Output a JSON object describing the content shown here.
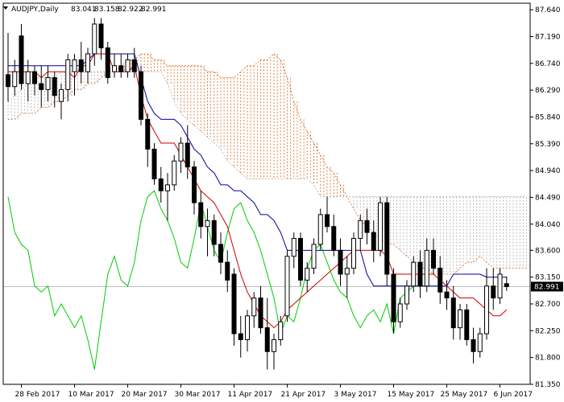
{
  "chart_data": {
    "type": "candlestick",
    "symbol": "AUDJPY",
    "timeframe": "Daily",
    "header": {
      "symbol_label": "AUDJPY,Daily",
      "open": "83.041",
      "high": "83.158",
      "low": "82.922",
      "close": "82.991"
    },
    "current_price": 82.991,
    "current_price_label": "82.991",
    "ylim": [
      81.35,
      87.75
    ],
    "y_ticks": [
      "87.640",
      "87.190",
      "86.740",
      "86.290",
      "85.840",
      "85.390",
      "84.940",
      "84.490",
      "84.040",
      "83.600",
      "83.150",
      "82.700",
      "82.250",
      "81.800",
      "81.350"
    ],
    "x_ticks": [
      {
        "i": 2,
        "label": "28 Feb 2017"
      },
      {
        "i": 10,
        "label": "10 Mar 2017"
      },
      {
        "i": 18,
        "label": "20 Mar 2017"
      },
      {
        "i": 26,
        "label": "30 Mar 2017"
      },
      {
        "i": 34,
        "label": "11 Apr 2017"
      },
      {
        "i": 42,
        "label": "21 Apr 2017"
      },
      {
        "i": 50,
        "label": "3 May 2017"
      },
      {
        "i": 58,
        "label": "15 May 2017"
      },
      {
        "i": 66,
        "label": "25 May 2017"
      },
      {
        "i": 74,
        "label": "6 Jun 2017"
      }
    ],
    "candles": [
      [
        86.55,
        87.25,
        86.1,
        86.35
      ],
      [
        86.35,
        86.8,
        86.2,
        86.6
      ],
      [
        87.2,
        87.4,
        86.3,
        86.4
      ],
      [
        86.4,
        86.8,
        86.1,
        86.6
      ],
      [
        86.6,
        86.7,
        86.2,
        86.4
      ],
      [
        86.4,
        86.7,
        86.0,
        86.3
      ],
      [
        86.3,
        86.7,
        86.1,
        86.5
      ],
      [
        86.5,
        86.6,
        86.0,
        86.2
      ],
      [
        86.1,
        86.4,
        85.8,
        86.3
      ],
      [
        86.3,
        86.9,
        86.1,
        86.8
      ],
      [
        86.6,
        86.9,
        86.2,
        86.8
      ],
      [
        86.8,
        87.1,
        86.4,
        86.6
      ],
      [
        86.6,
        87.0,
        86.4,
        86.9
      ],
      [
        86.9,
        87.5,
        86.7,
        87.4
      ],
      [
        87.4,
        87.5,
        86.8,
        87.0
      ],
      [
        87.0,
        87.1,
        86.4,
        86.5
      ],
      [
        86.6,
        86.9,
        86.5,
        86.7
      ],
      [
        86.7,
        86.9,
        86.5,
        86.6
      ],
      [
        86.6,
        86.9,
        86.5,
        86.8
      ],
      [
        86.8,
        87.0,
        86.5,
        86.6
      ],
      [
        86.6,
        86.7,
        85.7,
        85.8
      ],
      [
        85.8,
        85.9,
        85.0,
        85.3
      ],
      [
        85.3,
        85.4,
        84.7,
        84.8
      ],
      [
        84.8,
        85.0,
        84.4,
        84.6
      ],
      [
        84.6,
        84.9,
        84.1,
        84.7
      ],
      [
        84.7,
        85.2,
        84.6,
        85.1
      ],
      [
        85.1,
        85.5,
        84.9,
        85.4
      ],
      [
        85.4,
        85.7,
        84.8,
        85.0
      ],
      [
        85.0,
        85.1,
        84.2,
        84.4
      ],
      [
        84.4,
        84.6,
        83.8,
        84.0
      ],
      [
        84.0,
        84.3,
        83.5,
        84.1
      ],
      [
        84.1,
        84.2,
        83.5,
        83.7
      ],
      [
        83.7,
        83.9,
        83.2,
        83.4
      ],
      [
        83.4,
        83.6,
        82.9,
        83.1
      ],
      [
        83.2,
        83.3,
        82.0,
        82.2
      ],
      [
        82.2,
        82.5,
        81.8,
        82.1
      ],
      [
        82.1,
        82.6,
        81.9,
        82.5
      ],
      [
        82.5,
        82.9,
        82.3,
        82.8
      ],
      [
        82.8,
        83.0,
        82.2,
        82.3
      ],
      [
        82.3,
        82.8,
        81.6,
        81.9
      ],
      [
        81.9,
        82.2,
        81.6,
        82.1
      ],
      [
        82.1,
        82.5,
        82.0,
        82.4
      ],
      [
        82.5,
        83.6,
        82.4,
        83.5
      ],
      [
        83.5,
        83.9,
        83.3,
        83.8
      ],
      [
        83.8,
        83.9,
        83.0,
        83.1
      ],
      [
        83.1,
        83.4,
        82.9,
        83.3
      ],
      [
        83.3,
        83.8,
        83.2,
        83.7
      ],
      [
        83.7,
        84.3,
        83.6,
        84.2
      ],
      [
        84.2,
        84.5,
        83.9,
        84.0
      ],
      [
        84.0,
        84.2,
        83.5,
        83.6
      ],
      [
        83.6,
        83.8,
        83.0,
        83.2
      ],
      [
        83.2,
        83.5,
        82.8,
        83.3
      ],
      [
        83.3,
        83.9,
        83.2,
        83.8
      ],
      [
        83.8,
        84.2,
        83.6,
        84.1
      ],
      [
        84.1,
        84.3,
        83.7,
        83.9
      ],
      [
        83.9,
        84.1,
        83.4,
        83.6
      ],
      [
        83.6,
        84.5,
        83.5,
        84.4
      ],
      [
        84.4,
        84.5,
        83.0,
        83.2
      ],
      [
        83.2,
        83.3,
        82.2,
        82.4
      ],
      [
        82.4,
        82.8,
        82.3,
        82.7
      ],
      [
        82.7,
        83.1,
        82.6,
        83.0
      ],
      [
        83.0,
        83.5,
        82.9,
        83.4
      ],
      [
        83.4,
        83.6,
        82.8,
        83.0
      ],
      [
        83.0,
        83.8,
        82.9,
        83.6
      ],
      [
        83.6,
        83.8,
        83.2,
        83.3
      ],
      [
        83.3,
        83.5,
        82.7,
        82.9
      ],
      [
        82.9,
        83.1,
        82.6,
        82.8
      ],
      [
        82.8,
        83.0,
        82.1,
        82.3
      ],
      [
        82.3,
        82.7,
        82.1,
        82.6
      ],
      [
        82.6,
        82.7,
        82.0,
        82.1
      ],
      [
        82.1,
        82.3,
        81.7,
        81.9
      ],
      [
        81.9,
        82.3,
        81.8,
        82.2
      ],
      [
        82.2,
        83.3,
        82.1,
        83.0
      ],
      [
        83.0,
        83.3,
        82.6,
        82.8
      ],
      [
        82.8,
        83.3,
        82.7,
        83.2
      ],
      [
        83.04,
        83.16,
        82.92,
        82.99
      ]
    ],
    "tenkan": [
      86.6,
      86.6,
      86.6,
      86.6,
      86.6,
      86.5,
      86.6,
      86.6,
      86.6,
      86.6,
      86.5,
      86.7,
      86.7,
      86.9,
      86.9,
      86.9,
      86.6,
      86.6,
      86.6,
      86.7,
      86.2,
      85.8,
      85.6,
      85.4,
      85.4,
      85.4,
      85.2,
      85.0,
      84.8,
      84.6,
      84.5,
      84.4,
      84.2,
      84.0,
      83.6,
      83.2,
      82.9,
      82.7,
      82.5,
      82.4,
      82.3,
      82.4,
      82.6,
      82.7,
      82.8,
      82.9,
      83.0,
      83.1,
      83.2,
      83.3,
      83.4,
      83.5,
      83.6,
      83.6,
      83.6,
      83.6,
      83.6,
      83.5,
      83.2,
      83.2,
      83.2,
      83.2,
      83.2,
      83.2,
      83.2,
      83.1,
      83.0,
      82.9,
      82.8,
      82.8,
      82.8,
      82.7,
      82.6,
      82.5,
      82.5,
      82.6
    ],
    "kijun": [
      86.7,
      86.7,
      86.7,
      86.7,
      86.7,
      86.7,
      86.7,
      86.7,
      86.7,
      86.7,
      86.7,
      86.7,
      86.8,
      86.9,
      86.9,
      86.9,
      86.9,
      86.9,
      86.9,
      86.9,
      86.5,
      86.1,
      85.9,
      85.8,
      85.8,
      85.8,
      85.7,
      85.5,
      85.3,
      85.2,
      85.0,
      84.9,
      84.7,
      84.7,
      84.6,
      84.6,
      84.5,
      84.4,
      84.2,
      84.2,
      84.1,
      83.9,
      83.6,
      83.6,
      83.6,
      83.6,
      83.6,
      83.6,
      83.6,
      83.6,
      83.6,
      83.6,
      83.6,
      83.6,
      83.2,
      83.0,
      83.0,
      83.0,
      83.0,
      83.0,
      83.0,
      83.0,
      83.0,
      83.0,
      83.0,
      83.0,
      83.0,
      83.2,
      83.2,
      83.2,
      83.2,
      83.2,
      83.15,
      83.15,
      83.15,
      83.15
    ],
    "chikou": [
      84.5,
      83.9,
      83.7,
      83.6,
      83.0,
      82.9,
      83.0,
      82.5,
      82.7,
      82.5,
      82.3,
      82.5,
      82.1,
      81.6,
      82.4,
      83.2,
      83.5,
      83.1,
      83.0,
      83.4,
      84.1,
      84.5,
      84.6,
      84.3,
      84.1,
      83.8,
      83.4,
      83.3,
      83.8,
      84.4,
      84.0,
      83.6,
      83.4,
      83.9,
      84.3,
      84.4,
      84.1,
      83.9,
      83.6,
      83.2,
      82.8,
      82.2,
      82.5,
      82.4,
      82.8,
      83.3,
      83.6,
      83.7,
      83.4,
      83.1,
      82.9,
      82.8,
      82.5,
      82.3,
      82.5,
      82.6,
      82.4,
      82.7,
      82.2,
      82.8,
      82.9,
      83.0,
      83.0,
      83.0
    ],
    "span_a": [
      85.8,
      85.8,
      85.9,
      85.9,
      85.9,
      86.0,
      86.0,
      86.1,
      86.1,
      86.2,
      86.3,
      86.3,
      86.4,
      86.4,
      86.5,
      86.6,
      86.6,
      86.7,
      86.8,
      86.8,
      86.9,
      86.9,
      86.8,
      86.8,
      86.7,
      86.7,
      86.7,
      86.7,
      86.7,
      86.7,
      86.6,
      86.6,
      86.5,
      86.5,
      86.5,
      86.6,
      86.7,
      86.7,
      86.8,
      86.8,
      86.9,
      86.8,
      86.5,
      86.1,
      85.8,
      85.6,
      85.4,
      85.2,
      85.0,
      84.9,
      84.7,
      84.5,
      84.3,
      84.1,
      84.0,
      83.9,
      83.8,
      83.7,
      83.7,
      83.6,
      83.5,
      83.4,
      83.3,
      83.3,
      83.2,
      83.2,
      83.2,
      83.2,
      83.3,
      83.4,
      83.4,
      83.5,
      83.4,
      83.3,
      83.3,
      83.3,
      83.3,
      83.3,
      83.3,
      83.3,
      83.3,
      83.3,
      83.3,
      83.3,
      83.3,
      83.3
    ],
    "span_b": [
      86.1,
      86.2,
      86.3,
      86.4,
      86.5,
      86.5,
      86.5,
      86.5,
      86.6,
      86.6,
      86.6,
      86.6,
      86.6,
      86.6,
      86.6,
      86.6,
      86.6,
      86.6,
      86.6,
      86.6,
      86.6,
      86.6,
      86.6,
      86.6,
      86.4,
      86.1,
      85.9,
      85.8,
      85.7,
      85.6,
      85.5,
      85.4,
      85.3,
      85.1,
      85.0,
      84.9,
      84.8,
      84.8,
      84.8,
      84.8,
      84.8,
      84.8,
      84.8,
      84.8,
      84.8,
      84.8,
      84.7,
      84.5,
      84.5,
      84.5,
      84.5,
      84.5,
      84.5,
      84.5,
      84.5,
      84.5,
      84.5,
      84.5,
      84.5,
      84.5,
      84.5,
      84.5,
      84.5,
      84.5,
      84.5,
      84.5,
      84.5,
      84.5,
      84.5,
      84.5,
      84.5,
      84.5,
      84.5,
      84.5,
      84.5,
      84.5,
      84.5,
      84.5,
      84.5,
      84.5,
      84.5,
      84.5,
      84.5,
      84.5,
      84.5,
      84.5
    ]
  },
  "colors": {
    "background": "#ffffff",
    "text": "#000000",
    "tenkan": "#cc0000",
    "kijun": "#000099",
    "chikou": "#00cc00",
    "cloud_bull": "#d2691e",
    "cloud_bear": "#a9a9a9",
    "price_line": "#c0c0c0",
    "price_tag_bg": "#000000",
    "price_tag_text": "#ffffff"
  }
}
